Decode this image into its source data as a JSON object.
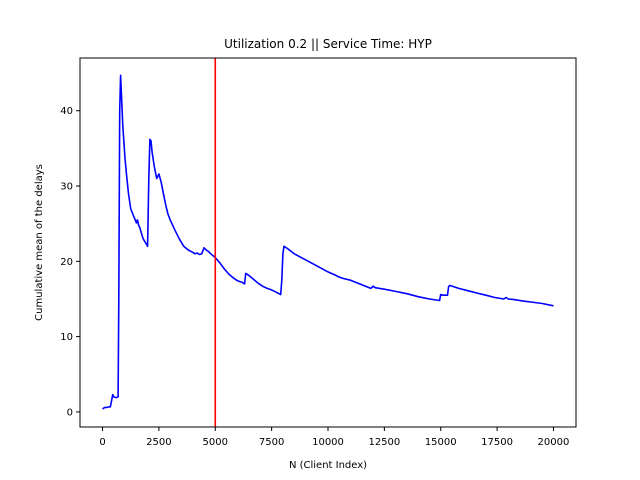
{
  "chart_data": {
    "type": "line",
    "title": "Utilization 0.2 || Service Time: HYP",
    "xlabel": "N (Client Index)",
    "ylabel": "Cumulative mean of the delays",
    "xlim": [
      -1000,
      21000
    ],
    "ylim": [
      -2,
      47
    ],
    "x_ticks": [
      0,
      2500,
      5000,
      7500,
      10000,
      12500,
      15000,
      17500,
      20000
    ],
    "x_tick_labels": [
      "0",
      "2500",
      "5000",
      "7500",
      "10000",
      "12500",
      "15000",
      "17500",
      "20000"
    ],
    "y_ticks": [
      0,
      10,
      20,
      30,
      40
    ],
    "y_tick_labels": [
      "0",
      "10",
      "20",
      "30",
      "40"
    ],
    "grid": false,
    "legend": "none",
    "vertical_line": {
      "x": 5000,
      "color": "#ff0000"
    },
    "series": [
      {
        "color": "#0000ff",
        "x": [
          0,
          100,
          200,
          350,
          400,
          450,
          500,
          600,
          690,
          720,
          760,
          800,
          900,
          1000,
          1080,
          1150,
          1250,
          1350,
          1450,
          1500,
          1550,
          1600,
          1650,
          1700,
          1800,
          1900,
          2000,
          2050,
          2100,
          2150,
          2200,
          2300,
          2400,
          2500,
          2600,
          2700,
          2800,
          2900,
          3000,
          3200,
          3400,
          3600,
          3800,
          4000,
          4100,
          4200,
          4300,
          4400,
          4500,
          4600,
          4700,
          4800,
          5000,
          5200,
          5400,
          5600,
          5800,
          6000,
          6200,
          6300,
          6350,
          6500,
          6700,
          6900,
          7100,
          7300,
          7500,
          7700,
          7900,
          7950,
          8000,
          8050,
          8200,
          8500,
          9000,
          9500,
          10000,
          10300,
          10500,
          10700,
          11000,
          11500,
          11900,
          12000,
          12100,
          12500,
          13000,
          13500,
          14000,
          14500,
          14950,
          15000,
          15100,
          15300,
          15350,
          15400,
          15800,
          16200,
          16600,
          17000,
          17400,
          17800,
          17900,
          18000,
          18300,
          18500,
          18700,
          19000,
          19500,
          20000
        ],
        "y": [
          0.4,
          0.6,
          0.6,
          0.7,
          1.5,
          2.3,
          2.0,
          1.9,
          2.0,
          15.0,
          40.0,
          44.7,
          38.0,
          33.5,
          31.0,
          29.0,
          27.0,
          26.2,
          25.5,
          25.1,
          25.5,
          24.8,
          24.5,
          24.0,
          23.0,
          22.5,
          22.0,
          31.0,
          36.2,
          36.0,
          34.5,
          32.5,
          31.0,
          31.6,
          30.5,
          29.0,
          27.5,
          26.3,
          25.5,
          24.2,
          23.0,
          22.0,
          21.5,
          21.2,
          21.0,
          21.1,
          20.9,
          21.0,
          21.8,
          21.5,
          21.3,
          21.0,
          20.5,
          19.8,
          19.0,
          18.3,
          17.8,
          17.4,
          17.2,
          17.0,
          18.4,
          18.1,
          17.6,
          17.1,
          16.7,
          16.4,
          16.2,
          15.9,
          15.6,
          17.5,
          21.0,
          22.0,
          21.7,
          21.0,
          20.2,
          19.4,
          18.6,
          18.2,
          17.9,
          17.7,
          17.5,
          16.9,
          16.4,
          16.7,
          16.5,
          16.3,
          16.0,
          15.7,
          15.3,
          15.0,
          14.8,
          15.6,
          15.5,
          15.5,
          16.6,
          16.8,
          16.4,
          16.1,
          15.8,
          15.5,
          15.2,
          15.0,
          15.2,
          15.0,
          14.9,
          14.8,
          14.7,
          14.6,
          14.4,
          14.1
        ]
      }
    ]
  }
}
